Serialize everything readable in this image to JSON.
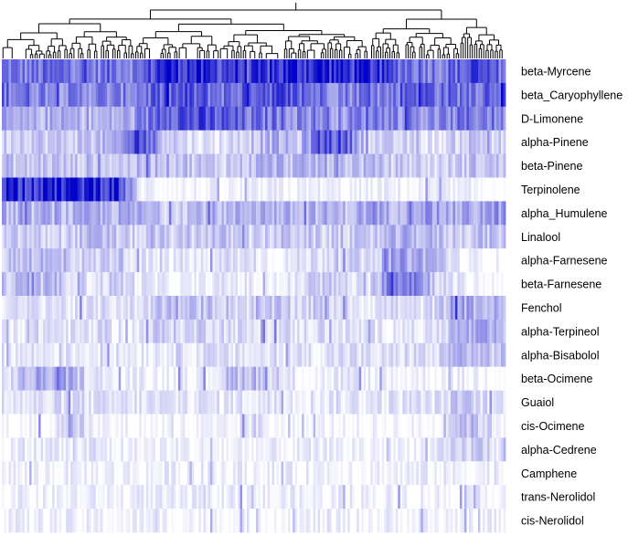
{
  "chart_data": {
    "type": "heatmap",
    "title": "",
    "xlabel": "",
    "ylabel": "",
    "column_dendrogram": true,
    "color_low": "#ffffff",
    "color_high": "#0000c8",
    "value_range": [
      0,
      1
    ],
    "rows": [
      {
        "label": "beta-Myrcene",
        "profile": [
          0.55,
          0.5,
          0.55,
          0.6,
          0.5,
          0.6,
          0.5,
          0.9,
          0.85,
          0.75,
          0.8,
          0.7,
          0.8,
          0.85,
          0.9,
          0.8,
          0.85,
          0.65,
          0.6,
          0.55,
          0.6,
          0.7,
          0.5
        ]
      },
      {
        "label": "beta_Caryophyllene",
        "profile": [
          0.6,
          0.55,
          0.5,
          0.45,
          0.5,
          0.45,
          0.55,
          0.6,
          0.65,
          0.6,
          0.55,
          0.75,
          0.7,
          0.6,
          0.55,
          0.5,
          0.55,
          0.5,
          0.75,
          0.6,
          0.55,
          0.6,
          0.8
        ]
      },
      {
        "label": "D-Limonene",
        "profile": [
          0.3,
          0.25,
          0.3,
          0.3,
          0.25,
          0.3,
          0.35,
          0.75,
          0.7,
          0.65,
          0.6,
          0.5,
          0.55,
          0.45,
          0.5,
          0.4,
          0.55,
          0.5,
          0.45,
          0.4,
          0.5,
          0.55,
          0.45
        ]
      },
      {
        "label": "alpha-Pinene",
        "profile": [
          0.2,
          0.25,
          0.2,
          0.2,
          0.25,
          0.25,
          0.8,
          0.3,
          0.15,
          0.1,
          0.15,
          0.25,
          0.3,
          0.2,
          0.7,
          0.65,
          0.2,
          0.15,
          0.15,
          0.1,
          0.2,
          0.25,
          0.15
        ]
      },
      {
        "label": "beta-Pinene",
        "profile": [
          0.25,
          0.2,
          0.25,
          0.2,
          0.25,
          0.2,
          0.25,
          0.3,
          0.25,
          0.2,
          0.2,
          0.25,
          0.3,
          0.25,
          0.3,
          0.25,
          0.25,
          0.2,
          0.2,
          0.15,
          0.2,
          0.25,
          0.2
        ]
      },
      {
        "label": "Terpinolene",
        "profile": [
          0.9,
          0.85,
          0.9,
          0.85,
          0.9,
          0.85,
          0.05,
          0.05,
          0.03,
          0.03,
          0.02,
          0.03,
          0.05,
          0.03,
          0.05,
          0.03,
          0.03,
          0.05,
          0.03,
          0.05,
          0.03,
          0.03,
          0.02
        ]
      },
      {
        "label": "alpha_Humulene",
        "profile": [
          0.3,
          0.25,
          0.3,
          0.25,
          0.3,
          0.3,
          0.3,
          0.2,
          0.25,
          0.3,
          0.25,
          0.35,
          0.3,
          0.25,
          0.3,
          0.25,
          0.35,
          0.3,
          0.45,
          0.35,
          0.3,
          0.35,
          0.4
        ]
      },
      {
        "label": "Linalool",
        "profile": [
          0.15,
          0.2,
          0.15,
          0.2,
          0.25,
          0.2,
          0.15,
          0.2,
          0.15,
          0.25,
          0.2,
          0.15,
          0.2,
          0.25,
          0.15,
          0.2,
          0.15,
          0.25,
          0.3,
          0.25,
          0.2,
          0.25,
          0.2
        ]
      },
      {
        "label": "alpha-Farnesene",
        "profile": [
          0.2,
          0.3,
          0.25,
          0.2,
          0.15,
          0.25,
          0.1,
          0.05,
          0.1,
          0.05,
          0.15,
          0.1,
          0.05,
          0.1,
          0.15,
          0.2,
          0.1,
          0.35,
          0.35,
          0.3,
          0.05,
          0.03,
          0.02
        ]
      },
      {
        "label": "beta-Farnesene",
        "profile": [
          0.15,
          0.25,
          0.2,
          0.2,
          0.1,
          0.2,
          0.1,
          0.05,
          0.03,
          0.05,
          0.1,
          0.05,
          0.03,
          0.1,
          0.2,
          0.15,
          0.05,
          0.6,
          0.55,
          0.2,
          0.05,
          0.03,
          0.02
        ]
      },
      {
        "label": "Fenchol",
        "profile": [
          0.1,
          0.1,
          0.15,
          0.1,
          0.1,
          0.15,
          0.1,
          0.25,
          0.2,
          0.25,
          0.2,
          0.15,
          0.2,
          0.15,
          0.2,
          0.15,
          0.1,
          0.15,
          0.1,
          0.15,
          0.35,
          0.3,
          0.25
        ]
      },
      {
        "label": "alpha-Terpineol",
        "profile": [
          0.1,
          0.1,
          0.15,
          0.1,
          0.1,
          0.1,
          0.1,
          0.2,
          0.15,
          0.2,
          0.15,
          0.1,
          0.15,
          0.1,
          0.15,
          0.1,
          0.1,
          0.1,
          0.1,
          0.1,
          0.3,
          0.3,
          0.25
        ]
      },
      {
        "label": "alpha-Bisabolol",
        "profile": [
          0.1,
          0.1,
          0.1,
          0.1,
          0.1,
          0.1,
          0.1,
          0.1,
          0.15,
          0.1,
          0.1,
          0.1,
          0.1,
          0.1,
          0.1,
          0.15,
          0.1,
          0.1,
          0.15,
          0.1,
          0.3,
          0.25,
          0.2
        ]
      },
      {
        "label": "beta-Ocimene",
        "profile": [
          0.1,
          0.25,
          0.35,
          0.3,
          0.1,
          0.05,
          0.05,
          0.05,
          0.1,
          0.05,
          0.25,
          0.3,
          0.1,
          0.05,
          0.05,
          0.1,
          0.05,
          0.05,
          0.05,
          0.05,
          0.05,
          0.05,
          0.05
        ]
      },
      {
        "label": "Guaiol",
        "profile": [
          0.1,
          0.1,
          0.1,
          0.15,
          0.1,
          0.1,
          0.1,
          0.1,
          0.1,
          0.1,
          0.1,
          0.1,
          0.1,
          0.1,
          0.1,
          0.1,
          0.1,
          0.1,
          0.1,
          0.1,
          0.2,
          0.15,
          0.1
        ]
      },
      {
        "label": "cis-Ocimene",
        "profile": [
          0.02,
          0.03,
          0.02,
          0.3,
          0.02,
          0.03,
          0.02,
          0.02,
          0.03,
          0.02,
          0.02,
          0.15,
          0.02,
          0.02,
          0.03,
          0.02,
          0.02,
          0.03,
          0.02,
          0.02,
          0.3,
          0.2,
          0.05
        ]
      },
      {
        "label": "alpha-Cedrene",
        "profile": [
          0.05,
          0.05,
          0.1,
          0.05,
          0.1,
          0.05,
          0.05,
          0.05,
          0.05,
          0.05,
          0.05,
          0.05,
          0.05,
          0.05,
          0.05,
          0.05,
          0.05,
          0.05,
          0.05,
          0.05,
          0.15,
          0.2,
          0.1
        ]
      },
      {
        "label": "Camphene",
        "profile": [
          0.05,
          0.05,
          0.05,
          0.05,
          0.05,
          0.05,
          0.05,
          0.06,
          0.05,
          0.05,
          0.06,
          0.05,
          0.05,
          0.05,
          0.06,
          0.05,
          0.05,
          0.05,
          0.06,
          0.05,
          0.05,
          0.06,
          0.05
        ]
      },
      {
        "label": "trans-Nerolidol",
        "profile": [
          0.05,
          0.05,
          0.04,
          0.05,
          0.05,
          0.04,
          0.05,
          0.05,
          0.04,
          0.05,
          0.05,
          0.04,
          0.05,
          0.05,
          0.04,
          0.05,
          0.05,
          0.04,
          0.05,
          0.05,
          0.04,
          0.05,
          0.05
        ]
      },
      {
        "label": "cis-Nerolidol",
        "profile": [
          0.04,
          0.04,
          0.05,
          0.04,
          0.04,
          0.05,
          0.04,
          0.04,
          0.05,
          0.04,
          0.04,
          0.05,
          0.04,
          0.04,
          0.05,
          0.04,
          0.04,
          0.05,
          0.04,
          0.04,
          0.05,
          0.04,
          0.04
        ]
      }
    ]
  }
}
